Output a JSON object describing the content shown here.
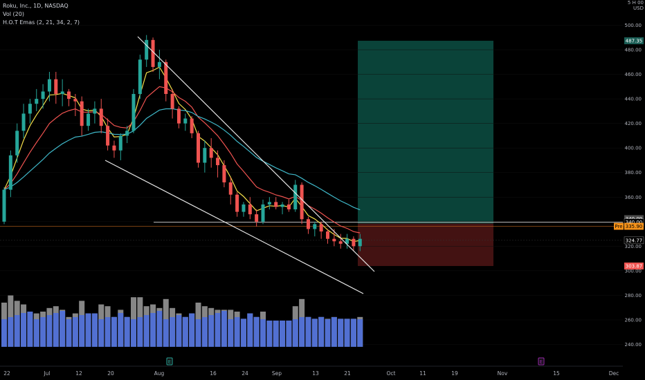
{
  "legend": {
    "symbol": "Roku, Inc., 1D, NASDAQ",
    "volume": "Vol (20)",
    "emas": "H.O.T Emas (2, 21, 34, 2, 7)"
  },
  "axis": {
    "currency_top": "5 H 00",
    "currency": "USD",
    "y_ticks": [
      "500.00",
      "480.00",
      "460.00",
      "440.00",
      "420.00",
      "400.00",
      "380.00",
      "360.00",
      "340.00",
      "320.00",
      "300.00",
      "280.00",
      "260.00",
      "240.00"
    ],
    "x_ticks": [
      "22",
      "Jul",
      "12",
      "20",
      "Aug",
      "16",
      "24",
      "Sep",
      "13",
      "21",
      "Oct",
      "11",
      "19",
      "Nov",
      "15",
      "Dec"
    ]
  },
  "price_tags": [
    {
      "label": "487.35",
      "value": 487.35,
      "bg": "#1b5e56",
      "color": "#ffffff"
    },
    {
      "label": "340.09",
      "value": 342.5,
      "bg": "#4a4a4a",
      "color": "#ffffff"
    },
    {
      "label": "340.00",
      "value": 339.5,
      "bg": "#000000",
      "color": "#ffffff"
    },
    {
      "label": "335.90",
      "value": 336.2,
      "bg": "#f7931a",
      "color": "#000000",
      "pre": "Pre"
    },
    {
      "label": "324.77",
      "value": 324.8,
      "bg": "#000000",
      "color": "#ffffff"
    },
    {
      "label": "303.87",
      "value": 303.87,
      "bg": "#ef5350",
      "color": "#ffffff"
    }
  ],
  "colors": {
    "up": "#26a69a",
    "down": "#ef5350",
    "ema_fast": "#f5e04a",
    "ema_mid": "#ef5350",
    "ema_slow": "#3fb8c9",
    "vol_up": "#2962ff",
    "vol_down": "#2962ff",
    "vol_avg": "#3d68d8",
    "profit": "#0b4a3f",
    "loss": "#4a1414"
  },
  "markers": {
    "dividend": "E",
    "earnings": "E"
  },
  "chart_data": {
    "type": "candlestick",
    "title": "Roku, Inc., 1D, NASDAQ",
    "ylim": [
      230,
      510
    ],
    "candles": [
      [
        340,
        368,
        338,
        366
      ],
      [
        366,
        398,
        360,
        394
      ],
      [
        394,
        420,
        388,
        414
      ],
      [
        414,
        436,
        408,
        428
      ],
      [
        428,
        440,
        420,
        436
      ],
      [
        436,
        448,
        430,
        440
      ],
      [
        440,
        452,
        432,
        446
      ],
      [
        446,
        462,
        438,
        456
      ],
      [
        456,
        462,
        436,
        444
      ],
      [
        444,
        456,
        434,
        446
      ],
      [
        446,
        448,
        434,
        440
      ],
      [
        440,
        444,
        426,
        438
      ],
      [
        438,
        442,
        410,
        418
      ],
      [
        418,
        432,
        414,
        428
      ],
      [
        428,
        438,
        420,
        432
      ],
      [
        432,
        440,
        412,
        418
      ],
      [
        418,
        424,
        398,
        402
      ],
      [
        402,
        406,
        392,
        398
      ],
      [
        398,
        412,
        390,
        410
      ],
      [
        410,
        418,
        404,
        414
      ],
      [
        414,
        448,
        412,
        444
      ],
      [
        444,
        476,
        440,
        472
      ],
      [
        472,
        492,
        466,
        488
      ],
      [
        488,
        490,
        462,
        466
      ],
      [
        466,
        480,
        456,
        470
      ],
      [
        470,
        472,
        438,
        444
      ],
      [
        444,
        448,
        424,
        432
      ],
      [
        432,
        434,
        416,
        420
      ],
      [
        420,
        428,
        414,
        424
      ],
      [
        424,
        426,
        408,
        412
      ],
      [
        412,
        414,
        384,
        388
      ],
      [
        388,
        406,
        380,
        400
      ],
      [
        400,
        408,
        384,
        392
      ],
      [
        392,
        398,
        376,
        386
      ],
      [
        386,
        390,
        368,
        372
      ],
      [
        372,
        376,
        354,
        362
      ],
      [
        362,
        364,
        344,
        348
      ],
      [
        348,
        356,
        344,
        354
      ],
      [
        354,
        360,
        342,
        346
      ],
      [
        346,
        350,
        336,
        340
      ],
      [
        340,
        358,
        338,
        354
      ],
      [
        354,
        360,
        350,
        356
      ],
      [
        356,
        360,
        350,
        352
      ],
      [
        352,
        356,
        346,
        354
      ],
      [
        354,
        358,
        348,
        350
      ],
      [
        350,
        374,
        348,
        370
      ],
      [
        370,
        372,
        338,
        342
      ],
      [
        342,
        344,
        330,
        334
      ],
      [
        334,
        340,
        328,
        338
      ],
      [
        338,
        340,
        326,
        332
      ],
      [
        332,
        334,
        322,
        326
      ],
      [
        326,
        334,
        320,
        324
      ],
      [
        324,
        330,
        318,
        322
      ],
      [
        322,
        330,
        318,
        326
      ],
      [
        326,
        328,
        316,
        320
      ],
      [
        320,
        330,
        316,
        326
      ]
    ],
    "volume_profile": "relative"
  }
}
